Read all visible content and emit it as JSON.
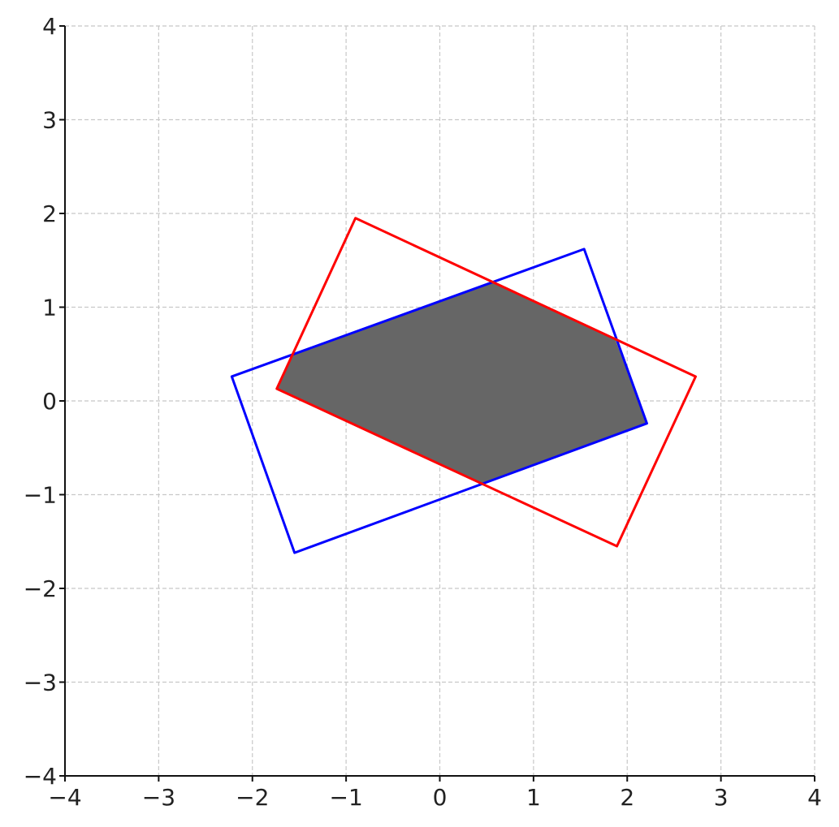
{
  "chart_data": {
    "type": "polygon",
    "xlim": [
      -4,
      4
    ],
    "ylim": [
      -4,
      4
    ],
    "xticks": [
      {
        "value": -4,
        "label": "−4"
      },
      {
        "value": -3,
        "label": "−3"
      },
      {
        "value": -2,
        "label": "−2"
      },
      {
        "value": -1,
        "label": "−1"
      },
      0,
      1,
      2,
      3,
      4
    ],
    "yticks": [
      {
        "value": -4,
        "label": "−4"
      },
      {
        "value": -3,
        "label": "−3"
      },
      {
        "value": -2,
        "label": "−2"
      },
      {
        "value": -1,
        "label": "−1"
      },
      0,
      1,
      2,
      3,
      4
    ],
    "grid": true,
    "series": [
      {
        "color": "#666666",
        "fill": true,
        "x": [
          -1.74,
          -1.56,
          0.55,
          1.87,
          2.21,
          0.47
        ],
        "y": [
          0.13,
          0.49,
          1.27,
          0.66,
          -0.24,
          -0.89
        ]
      },
      {
        "color": "#0000ff",
        "fill": false,
        "x": [
          -2.22,
          1.54,
          2.21,
          -1.55
        ],
        "y": [
          0.26,
          1.62,
          -0.24,
          -1.62
        ]
      },
      {
        "color": "#ff0000",
        "fill": false,
        "x": [
          -0.9,
          2.73,
          1.89,
          -1.74
        ],
        "y": [
          1.95,
          0.26,
          -1.55,
          0.13
        ]
      }
    ]
  }
}
